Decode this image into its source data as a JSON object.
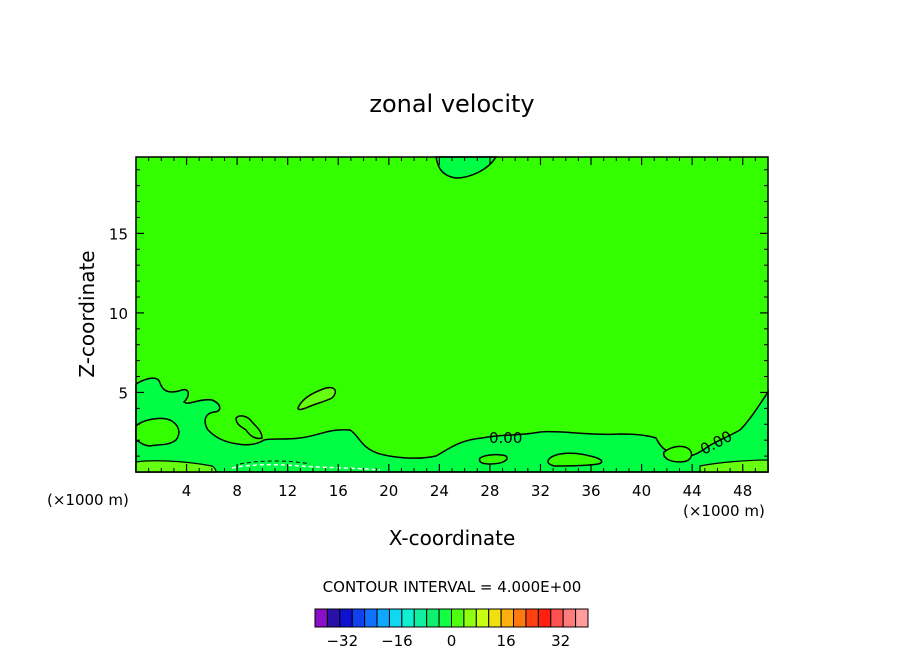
{
  "chart_data": {
    "type": "contour",
    "title": "zonal velocity",
    "xlabel": "X-coordinate",
    "ylabel": "Z-coordinate",
    "x_unit_note": "(×1000 m)",
    "xlim": [
      0,
      50
    ],
    "ylim": [
      0,
      19.8
    ],
    "x_ticks": [
      4,
      8,
      12,
      16,
      20,
      24,
      28,
      32,
      36,
      40,
      44,
      48
    ],
    "y_ticks": [
      5,
      10,
      15
    ],
    "contour_labels": [
      "0.00",
      "0.00"
    ],
    "contour_interval_text": "CONTOUR INTERVAL = 4.000E+00",
    "colorbar": {
      "min": -40,
      "max": 40,
      "step": 4,
      "tick_values": [
        -32,
        -16,
        0,
        16,
        32
      ],
      "colors": [
        "#8a10c8",
        "#2a10a8",
        "#1010d0",
        "#1040f0",
        "#1070ff",
        "#10a8ff",
        "#10d8f0",
        "#10f0d0",
        "#10f0a0",
        "#10f070",
        "#10ff40",
        "#50ff10",
        "#90ff10",
        "#c8ff10",
        "#f0e010",
        "#ffb010",
        "#ff7810",
        "#ff4010",
        "#ff2010",
        "#ff5050",
        "#ff7c7c",
        "#ff9c9c"
      ]
    },
    "regions": [
      {
        "name": "background",
        "value": 2,
        "color": "#33ff00"
      },
      {
        "name": "top-bulge",
        "value": 0,
        "color": "#00ff44"
      },
      {
        "name": "left-low-region",
        "value": 0,
        "color": "#00ff44"
      },
      {
        "name": "lower-band",
        "value": 0,
        "color": "#00ff44"
      },
      {
        "name": "positive-blob",
        "value": 6,
        "color": "#66ff11"
      }
    ]
  }
}
